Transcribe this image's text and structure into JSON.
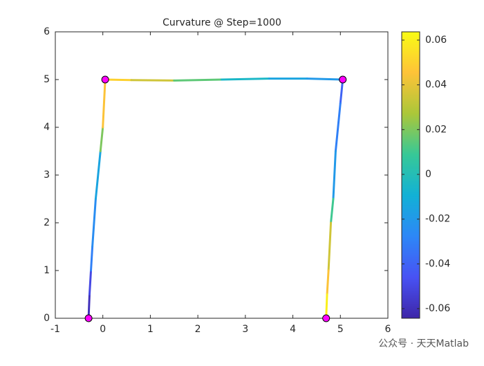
{
  "chart_data": {
    "type": "line",
    "title": "Curvature @ Step=1000",
    "xlim": [
      -1,
      6
    ],
    "ylim": [
      0,
      6
    ],
    "xticks": [
      -1,
      0,
      1,
      2,
      3,
      4,
      5,
      6
    ],
    "yticks": [
      0,
      1,
      2,
      3,
      4,
      5,
      6
    ],
    "series": [
      {
        "x": [
          -0.3,
          -0.28,
          -0.25,
          -0.22,
          -0.15,
          -0.05,
          0,
          0.05
        ],
        "y": [
          0,
          0.5,
          1,
          1.5,
          2.5,
          3.5,
          4,
          5
        ],
        "curvature": [
          -0.06,
          -0.05,
          -0.03,
          -0.025,
          -0.015,
          0.02,
          0.045
        ]
      },
      {
        "x": [
          0.05,
          0.6,
          1.5,
          2.5,
          3.5,
          4.3,
          5.05
        ],
        "y": [
          5,
          4.99,
          4.98,
          5.0,
          5.02,
          5.02,
          5
        ],
        "curvature": [
          0.05,
          0.035,
          0.015,
          -0.005,
          -0.015,
          -0.02
        ]
      },
      {
        "x": [
          5.05,
          5.0,
          4.9,
          4.85,
          4.8,
          4.75,
          4.72,
          4.7
        ],
        "y": [
          5,
          4.5,
          3.5,
          2.5,
          2,
          1,
          0.5,
          0
        ],
        "curvature": [
          -0.04,
          -0.03,
          -0.02,
          0.01,
          0.035,
          0.045,
          0.06
        ]
      }
    ],
    "nodes": {
      "x": [
        -0.3,
        0.05,
        5.05,
        4.7
      ],
      "y": [
        0,
        5,
        5,
        0
      ],
      "color": "#ff00ff"
    },
    "colorbar": {
      "lim": [
        -0.0643,
        0.0637
      ],
      "ticks": [
        -0.06,
        -0.04,
        -0.02,
        0,
        0.02,
        0.04,
        0.06
      ],
      "colormap": [
        "#3e26a8",
        "#4852f4",
        "#2d87f7",
        "#12b1d6",
        "#37c897",
        "#abc739",
        "#fec338",
        "#f9fb15"
      ]
    }
  },
  "watermark": "公众号 · 天天Matlab"
}
